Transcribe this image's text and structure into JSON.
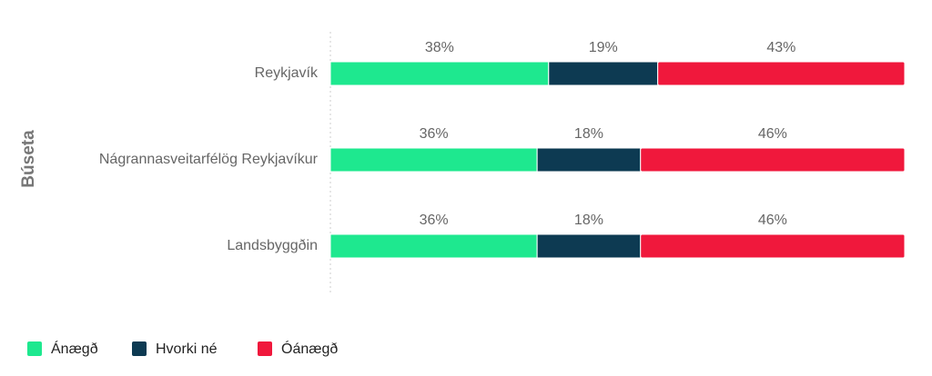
{
  "chart_data": {
    "type": "bar",
    "orientation": "horizontal",
    "stacked": true,
    "y_axis_title": "Búseta",
    "categories": [
      "Reykjavík",
      "Nágrannasveitarfélög Reykjavíkur",
      "Landsbyggðin"
    ],
    "xlim": [
      0,
      100
    ],
    "legend": "bottom-left",
    "series": [
      {
        "name": "Ánægð",
        "color": "#1ee88f",
        "values": [
          38,
          36,
          36
        ],
        "value_labels": [
          "38%",
          "36%",
          "36%"
        ]
      },
      {
        "name": "Hvorki né",
        "color": "#0d3a52",
        "values": [
          19,
          18,
          18
        ],
        "value_labels": [
          "19%",
          "18%",
          "18%"
        ]
      },
      {
        "name": "Óánægð",
        "color": "#f0183c",
        "values": [
          43,
          46,
          46
        ],
        "value_labels": [
          "43%",
          "46%",
          "46%"
        ]
      }
    ]
  }
}
